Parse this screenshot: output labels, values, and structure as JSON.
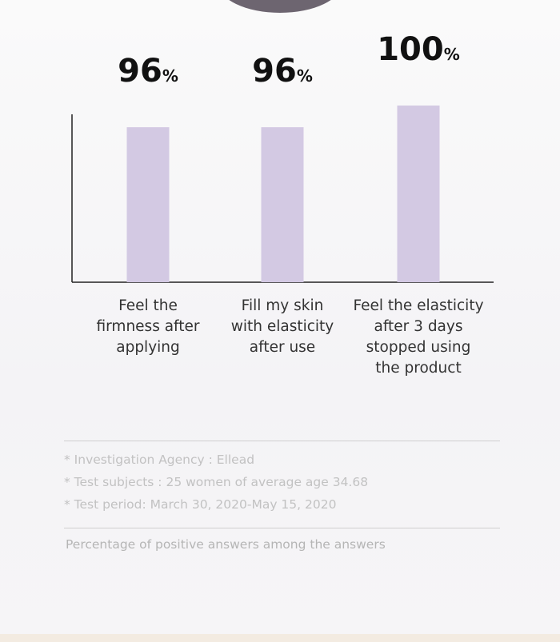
{
  "chart_data": {
    "type": "bar",
    "categories": [
      "Feel the\nfirmness after\napplying",
      "Fill my skin\nwith elasticity\nafter use",
      "Feel the elasticity\nafter 3 days\nstopped using\nthe product"
    ],
    "values": [
      96,
      96,
      100
    ],
    "value_labels": [
      "96%",
      "96%",
      "100%"
    ],
    "color": "#d3c9e3",
    "ylim": [
      67.4,
      100
    ]
  },
  "notes": [
    "* Investigation Agency : Ellead",
    "* Test subjects : 25 women of average age 34.68",
    "* Test period: March 30, 2020-May 15, 2020"
  ],
  "caption": "Percentage of positive answers among the answers"
}
